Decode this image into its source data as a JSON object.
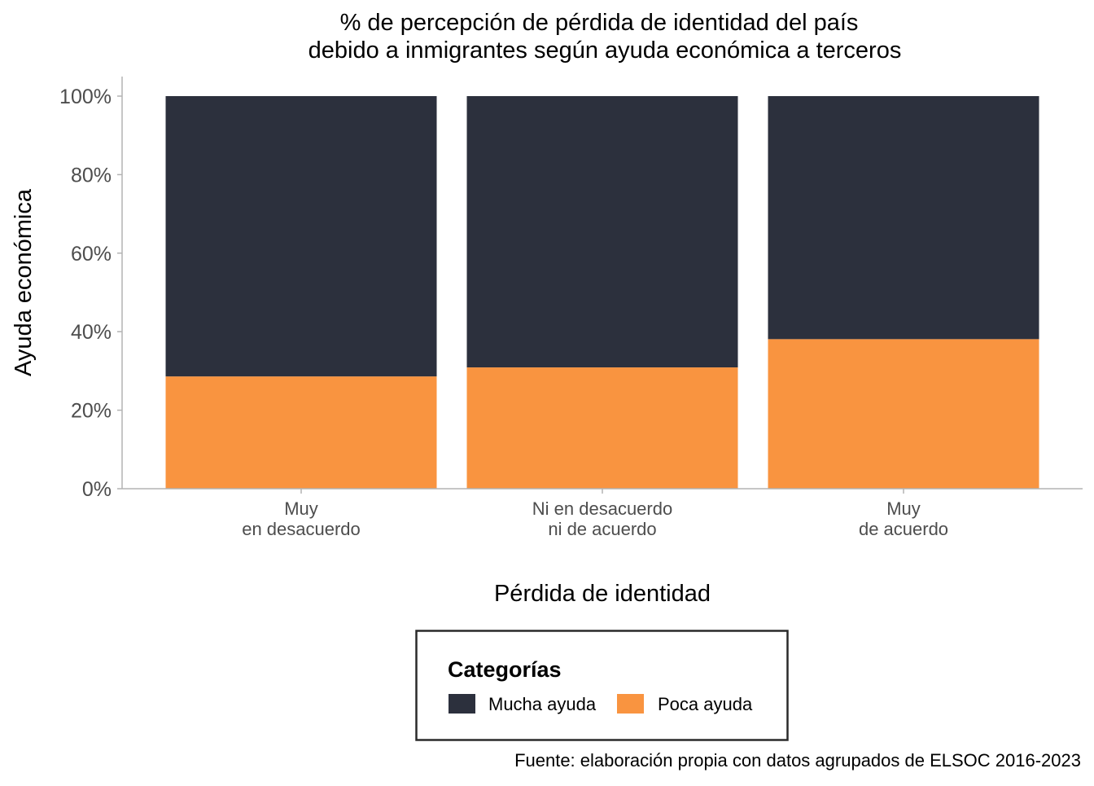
{
  "chart_data": {
    "type": "bar",
    "stacked": true,
    "percent_stacked": true,
    "title": [
      "% de percepción de pérdida de identidad del país",
      "debido a inmigrantes según ayuda económica a terceros"
    ],
    "xlabel": "Pérdida de identidad",
    "ylabel": "Ayuda económica",
    "categories": [
      [
        "Muy",
        "en desacuerdo"
      ],
      [
        "Ni en desacuerdo",
        "ni de acuerdo"
      ],
      [
        "Muy",
        "de acuerdo"
      ]
    ],
    "series": [
      {
        "name": "Poca ayuda",
        "color": "#f99440",
        "values": [
          28.6,
          30.9,
          38.1
        ]
      },
      {
        "name": "Mucha ayuda",
        "color": "#2c303d",
        "values": [
          71.4,
          69.1,
          61.9
        ]
      }
    ],
    "ylim": [
      0,
      100
    ],
    "yticks": [
      "0%",
      "20%",
      "40%",
      "60%",
      "80%",
      "100%"
    ],
    "grid": false,
    "legend": {
      "title": "Categorías",
      "placement": "bottom",
      "entries": [
        {
          "label": "Mucha ayuda",
          "color": "#2c303d"
        },
        {
          "label": "Poca ayuda",
          "color": "#f99440"
        }
      ]
    },
    "caption": "Fuente: elaboración propia con datos agrupados de ELSOC 2016-2023"
  }
}
